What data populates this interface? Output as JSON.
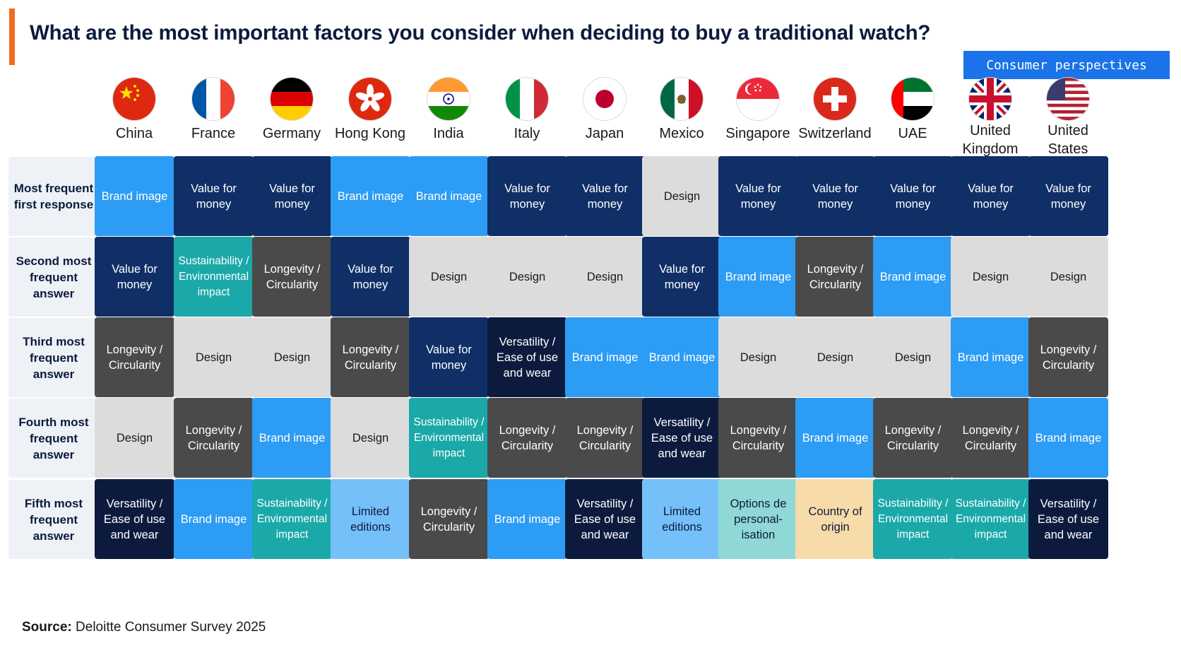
{
  "title": "What are the most important factors you consider when deciding to buy a traditional watch?",
  "tag": "Consumer perspectives",
  "source_label": "Source:",
  "source_text": "Deloitte Consumer Survey 2025",
  "colors": {
    "accent": "#f36b21",
    "Brand image": "#2d9cf4",
    "Value for money": "#0f2f66",
    "Design": "#dcdcdc",
    "Longevity / Circularity": "#4a4a4a",
    "Sustainability / Environmental impact": "#1aa9a8",
    "Versatility / Ease of use and wear": "#0c1b3d",
    "Limited editions": "#76c0fa",
    "Options de personal-isation": "#8fd8d6",
    "Country of origin": "#f7dba8"
  },
  "countries": [
    {
      "name": "China",
      "flag_icon": "china-flag-icon"
    },
    {
      "name": "France",
      "flag_icon": "france-flag-icon"
    },
    {
      "name": "Germany",
      "flag_icon": "germany-flag-icon"
    },
    {
      "name": "Hong Kong",
      "flag_icon": "hong-kong-flag-icon"
    },
    {
      "name": "India",
      "flag_icon": "india-flag-icon"
    },
    {
      "name": "Italy",
      "flag_icon": "italy-flag-icon"
    },
    {
      "name": "Japan",
      "flag_icon": "japan-flag-icon"
    },
    {
      "name": "Mexico",
      "flag_icon": "mexico-flag-icon"
    },
    {
      "name": "Singapore",
      "flag_icon": "singapore-flag-icon"
    },
    {
      "name": "Switzerland",
      "flag_icon": "switzerland-flag-icon"
    },
    {
      "name": "UAE",
      "flag_icon": "uae-flag-icon"
    },
    {
      "name": "United Kingdom",
      "flag_icon": "uk-flag-icon"
    },
    {
      "name": "United States",
      "flag_icon": "usa-flag-icon"
    }
  ],
  "rows": [
    {
      "label": "Most frequent first response",
      "cells": [
        "Brand image",
        "Value for money",
        "Value for money",
        "Brand image",
        "Brand image",
        "Value for money",
        "Value for money",
        "Design",
        "Value for money",
        "Value for money",
        "Value for money",
        "Value for money",
        "Value for money"
      ]
    },
    {
      "label": "Second most frequent answer",
      "cells": [
        "Value for money",
        "Sustainability / Environmental impact",
        "Longevity / Circularity",
        "Value for money",
        "Design",
        "Design",
        "Design",
        "Value for money",
        "Brand image",
        "Longevity / Circularity",
        "Brand image",
        "Design",
        "Design"
      ]
    },
    {
      "label": "Third most frequent answer",
      "cells": [
        "Longevity / Circularity",
        "Design",
        "Design",
        "Longevity / Circularity",
        "Value for money",
        "Versatility / Ease of use and wear",
        "Brand image",
        "Brand image",
        "Design",
        "Design",
        "Design",
        "Brand image",
        "Longevity / Circularity"
      ]
    },
    {
      "label": "Fourth most frequent answer",
      "cells": [
        "Design",
        "Longevity / Circularity",
        "Brand image",
        "Design",
        "Sustainability / Environmental impact",
        "Longevity / Circularity",
        "Longevity / Circularity",
        "Versatility / Ease of use and wear",
        "Longevity / Circularity",
        "Brand image",
        "Longevity / Circularity",
        "Longevity / Circularity",
        "Brand image"
      ]
    },
    {
      "label": "Fifth most frequent answer",
      "cells": [
        "Versatility / Ease of use and wear",
        "Brand image",
        "Sustainability / Environmental impact",
        "Limited editions",
        "Longevity / Circularity",
        "Brand image",
        "Versatility / Ease of use and wear",
        "Limited editions",
        "Options de personal-isation",
        "Country of origin",
        "Sustainability / Environmental impact",
        "Sustainability / Environmental impact",
        "Versatility / Ease of use and wear"
      ]
    }
  ]
}
